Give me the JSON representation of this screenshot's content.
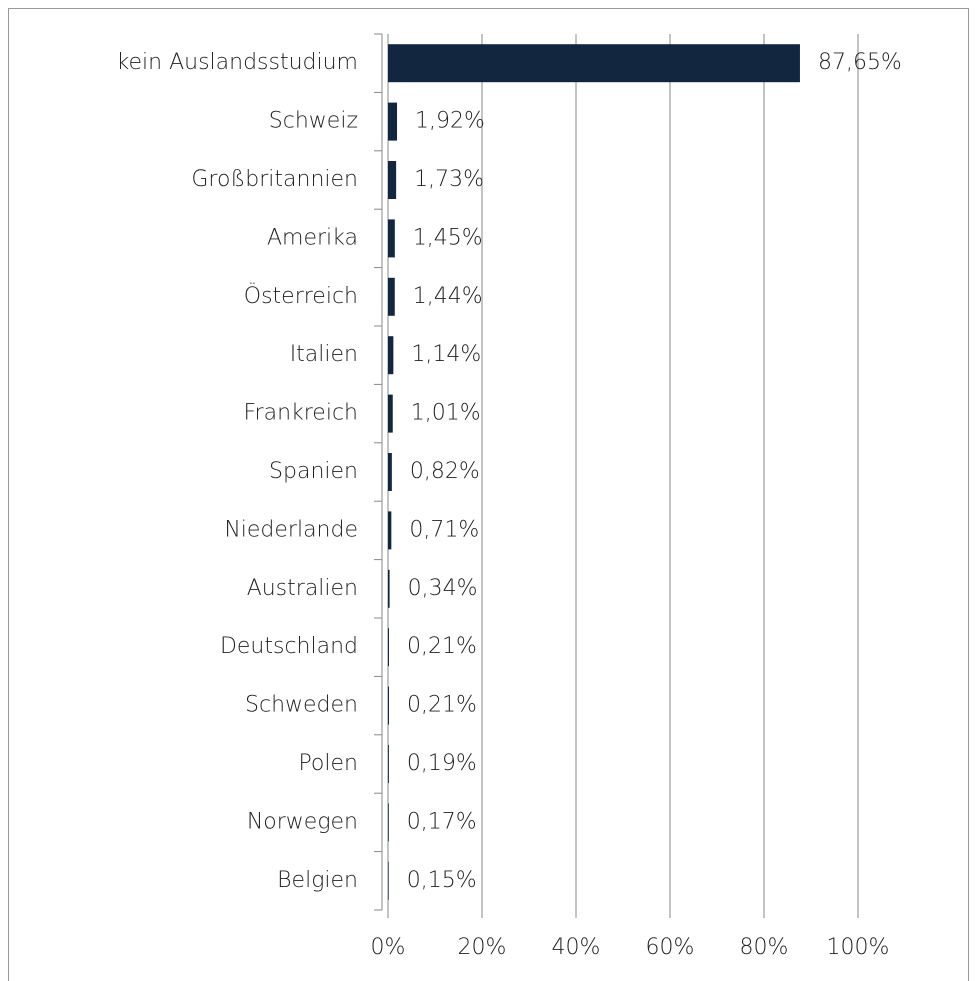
{
  "chart_data": {
    "type": "barh",
    "categories": [
      "kein Auslandsstudium",
      "Schweiz",
      "Großbritannien",
      "Amerika",
      "Österreich",
      "Italien",
      "Frankreich",
      "Spanien",
      "Niederlande",
      "Australien",
      "Deutschland",
      "Schweden",
      "Polen",
      "Norwegen",
      "Belgien"
    ],
    "values": [
      87.65,
      1.92,
      1.73,
      1.45,
      1.44,
      1.14,
      1.01,
      0.82,
      0.71,
      0.34,
      0.21,
      0.21,
      0.19,
      0.17,
      0.15
    ],
    "value_labels": [
      "87,65%",
      "1,92%",
      "1,73%",
      "1,45%",
      "1,44%",
      "1,14%",
      "1,01%",
      "0,82%",
      "0,71%",
      "0,34%",
      "0,21%",
      "0,21%",
      "0,19%",
      "0,17%",
      "0,15%"
    ],
    "color": "#13263f",
    "xlim": [
      0,
      100
    ],
    "xticks": [
      {
        "value": 0,
        "label": "0%"
      },
      {
        "value": 20,
        "label": "20%"
      },
      {
        "value": 40,
        "label": "40%"
      },
      {
        "value": 60,
        "label": "60%"
      },
      {
        "value": 80,
        "label": "80%"
      },
      {
        "value": 100,
        "label": "100%"
      }
    ],
    "grid": true
  }
}
